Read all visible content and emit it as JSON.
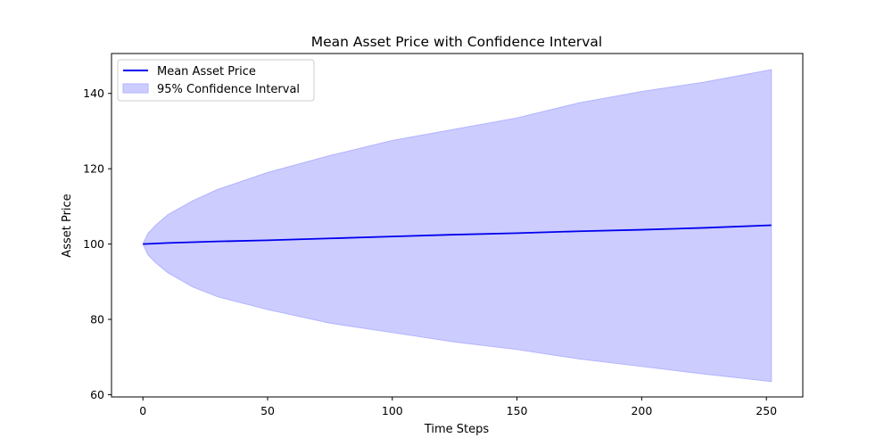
{
  "chart_data": {
    "type": "line",
    "title": "Mean Asset Price with Confidence Interval",
    "xlabel": "Time Steps",
    "ylabel": "Asset Price",
    "xlim": [
      -12.6,
      264.6
    ],
    "ylim": [
      59.4,
      150.6
    ],
    "xticks": [
      0,
      50,
      100,
      150,
      200,
      250
    ],
    "yticks": [
      60,
      80,
      100,
      120,
      140
    ],
    "grid": false,
    "legend_position": "upper left",
    "colors": {
      "mean_line": "#0000ee",
      "band_fill": "#ccccff",
      "band_edge": "#b3b3ff"
    },
    "series": [
      {
        "name": "Mean Asset Price",
        "kind": "line",
        "x": [
          0,
          10,
          20,
          30,
          50,
          75,
          100,
          125,
          150,
          175,
          200,
          225,
          252
        ],
        "y": [
          100.0,
          100.3,
          100.5,
          100.7,
          101.0,
          101.5,
          102.0,
          102.5,
          102.9,
          103.4,
          103.8,
          104.3,
          105.0
        ]
      },
      {
        "name": "95% Confidence Interval",
        "kind": "band",
        "x": [
          0,
          2,
          5,
          10,
          20,
          30,
          50,
          75,
          100,
          125,
          150,
          175,
          200,
          225,
          252
        ],
        "upper": [
          100.0,
          102.8,
          104.9,
          107.8,
          111.5,
          114.5,
          119.0,
          123.5,
          127.5,
          130.5,
          133.5,
          137.5,
          140.5,
          143.0,
          146.3
        ],
        "lower": [
          100.0,
          97.2,
          95.1,
          92.4,
          88.6,
          86.0,
          82.6,
          79.0,
          76.5,
          74.0,
          72.0,
          69.5,
          67.5,
          65.5,
          63.5
        ]
      }
    ]
  }
}
